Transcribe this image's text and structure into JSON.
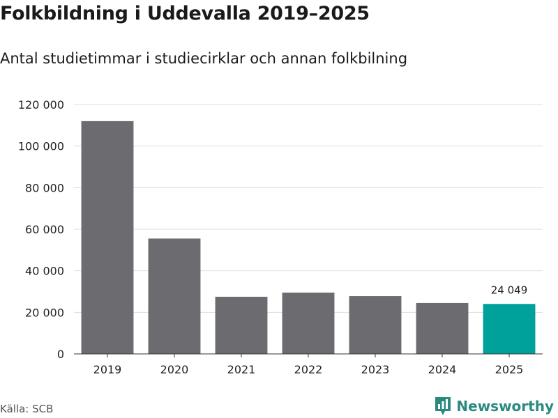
{
  "header": {
    "title": "Folkbildning i Uddevalla 2019–2025",
    "subtitle": "Antal studietimmar i studiecirklar och annan folkbilning"
  },
  "footer": {
    "source": "Källa: SCB",
    "brand": "Newsworthy"
  },
  "colors": {
    "bar": "#6c6b70",
    "highlight": "#00a19a",
    "grid": "#dddddd",
    "axis": "#333333",
    "brand": "#2a8a80"
  },
  "chart_data": {
    "type": "bar",
    "title": "Folkbildning i Uddevalla 2019–2025",
    "subtitle": "Antal studietimmar i studiecirklar och annan folkbilning",
    "xlabel": "",
    "ylabel": "",
    "categories": [
      "2019",
      "2020",
      "2021",
      "2022",
      "2023",
      "2024",
      "2025"
    ],
    "values": [
      112000,
      55500,
      27500,
      29500,
      27800,
      24500,
      24049
    ],
    "highlight_index": 6,
    "data_label": "24 049",
    "ylim": [
      0,
      120000
    ],
    "yticks": [
      0,
      20000,
      40000,
      60000,
      80000,
      100000,
      120000
    ],
    "ytick_labels": [
      "0",
      "20 000",
      "40 000",
      "60 000",
      "80 000",
      "100 000",
      "120 000"
    ],
    "grid": true
  }
}
